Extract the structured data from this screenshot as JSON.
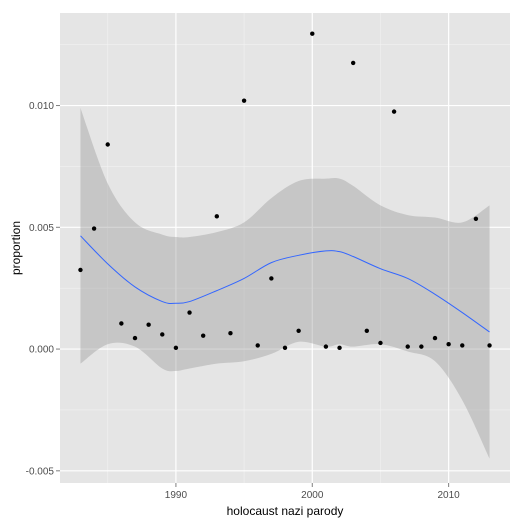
{
  "chart_data": {
    "type": "scatter",
    "title": "",
    "xlabel": "holocaust nazi parody",
    "ylabel": "proportion",
    "xlim": [
      1981.5,
      2014.5
    ],
    "ylim": [
      -0.0055,
      0.0138
    ],
    "xticks": [
      1990,
      2000,
      2010
    ],
    "xtick_labels": [
      "1990",
      "2000",
      "2010"
    ],
    "yticks": [
      -0.005,
      0.0,
      0.005,
      0.01
    ],
    "ytick_labels": [
      "-0.005",
      "0.000",
      "0.005",
      "0.010"
    ],
    "grid": true,
    "colors": {
      "panel_bg": "#e5e5e5",
      "grid_major": "#ffffff",
      "grid_minor": "#f2f2f2",
      "point": "#000000",
      "smooth_line": "#3366ff",
      "ribbon": "#999999"
    },
    "points": {
      "x": [
        1983,
        1984,
        1985,
        1986,
        1987,
        1988,
        1989,
        1990,
        1991,
        1992,
        1993,
        1994,
        1995,
        1996,
        1997,
        1998,
        1999,
        2000,
        2001,
        2002,
        2003,
        2004,
        2005,
        2006,
        2007,
        2008,
        2009,
        2010,
        2011,
        2012,
        2013
      ],
      "y": [
        0.00325,
        0.00495,
        0.0084,
        0.00105,
        0.00045,
        0.001,
        0.0006,
        5e-05,
        0.0015,
        0.00055,
        0.00545,
        0.00065,
        0.0102,
        0.00015,
        0.0029,
        5e-05,
        0.00075,
        0.01295,
        0.0001,
        5e-05,
        0.01175,
        0.00075,
        0.00025,
        0.00975,
        0.0001,
        0.0001,
        0.00045,
        0.0002,
        0.00015,
        0.00535,
        0.00015
      ]
    },
    "smooth": {
      "x": [
        1983,
        1985,
        1987,
        1989,
        1990,
        1991,
        1993,
        1995,
        1997,
        1999,
        2001,
        2002,
        2003,
        2005,
        2007,
        2009,
        2011,
        2013
      ],
      "y": [
        0.00465,
        0.0035,
        0.00255,
        0.00195,
        0.00188,
        0.00195,
        0.0024,
        0.0029,
        0.00355,
        0.00385,
        0.00403,
        0.004,
        0.0038,
        0.0033,
        0.0029,
        0.00225,
        0.0015,
        0.0007
      ],
      "lower": [
        -0.0006,
        0.0002,
        0.0001,
        -0.0008,
        -0.0009,
        -0.0008,
        -0.0006,
        -0.0005,
        -0.0002,
        0.0003,
        0.0001,
        0.0002,
        0.0001,
        0.0002,
        -0.0001,
        -0.0005,
        -0.0021,
        -0.0045
      ],
      "upper": [
        0.0099,
        0.0068,
        0.0052,
        0.0047,
        0.0046,
        0.0046,
        0.0048,
        0.0052,
        0.0062,
        0.0069,
        0.007,
        0.007,
        0.0067,
        0.0059,
        0.0055,
        0.0054,
        0.0052,
        0.0059
      ]
    }
  }
}
